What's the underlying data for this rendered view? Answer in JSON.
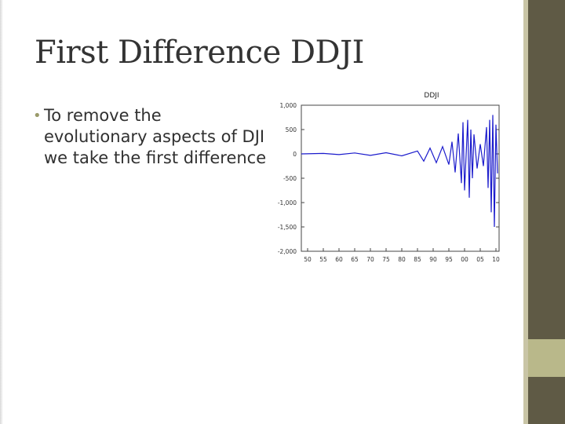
{
  "slide": {
    "title": "First Difference DDJI",
    "bullet": "To remove the evolutionary aspects of DJI we take the first difference"
  },
  "chart_data": {
    "type": "line",
    "title": "DDJI",
    "xlabel": "",
    "ylabel": "",
    "x_tick_labels": [
      "50",
      "55",
      "60",
      "65",
      "70",
      "75",
      "80",
      "85",
      "90",
      "95",
      "00",
      "05",
      "10"
    ],
    "y_tick_labels": [
      "1,000",
      "500",
      "0",
      "-500",
      "-1,000",
      "-1,500",
      "-2,000"
    ],
    "y_ticks": [
      1000,
      500,
      0,
      -500,
      -1000,
      -1500,
      -2000
    ],
    "ylim": [
      -2000,
      1000
    ],
    "xlim": [
      1948,
      2011
    ],
    "grid": false,
    "series": [
      {
        "color": "#1b1bcc",
        "x": [
          1948,
          1955,
          1960,
          1965,
          1970,
          1975,
          1980,
          1985,
          1987,
          1989,
          1991,
          1993,
          1995,
          1996,
          1997,
          1998,
          1999,
          1999.5,
          2000,
          2001,
          2001.5,
          2002,
          2002.5,
          2003,
          2004,
          2005,
          2006,
          2007,
          2007.5,
          2008,
          2008.5,
          2009,
          2009.5,
          2010,
          2010.5
        ],
        "values": [
          0,
          10,
          -15,
          20,
          -30,
          25,
          -40,
          60,
          -150,
          120,
          -180,
          150,
          -220,
          250,
          -380,
          420,
          -600,
          650,
          -750,
          700,
          -900,
          500,
          -500,
          400,
          -300,
          200,
          -250,
          550,
          -700,
          700,
          -1200,
          800,
          -1500,
          600,
          -400
        ]
      }
    ]
  }
}
